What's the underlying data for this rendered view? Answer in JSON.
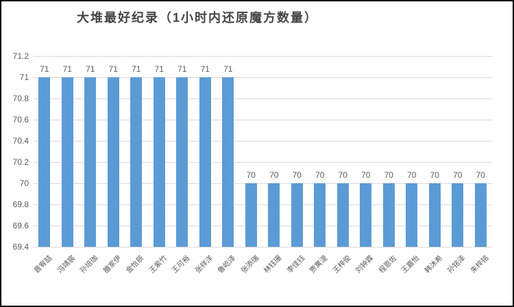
{
  "chart_data": {
    "type": "bar",
    "title": "大堆最好纪录（1小时内还原魔方数量）",
    "categories": [
      "晋宥喆",
      "冯靖宸",
      "孙培珈",
      "雒家伊",
      "金怡辰",
      "王紫竹",
      "王可裕",
      "张祥洋",
      "鲁屹泽",
      "张添瑞",
      "林钰珊",
      "李佳钰",
      "贾寓湜",
      "王梓俊",
      "刘钟霖",
      "程恩佐",
      "王嘉怡",
      "韩沐希",
      "孙铭泽",
      "朱梓铭"
    ],
    "values": [
      71,
      71,
      71,
      71,
      71,
      71,
      71,
      71,
      71,
      70,
      70,
      70,
      70,
      70,
      70,
      70,
      70,
      70,
      70,
      70
    ],
    "data_labels": [
      "71",
      "71",
      "71",
      "71",
      "71",
      "71",
      "71",
      "71",
      "71",
      "70",
      "70",
      "70",
      "70",
      "70",
      "70",
      "70",
      "70",
      "70",
      "70",
      "70"
    ],
    "xlabel": "",
    "ylabel": "",
    "ylim": [
      69.4,
      71.2
    ],
    "ytick_step": 0.2,
    "yticks": [
      "71.2",
      "71",
      "70.8",
      "70.6",
      "70.4",
      "70.2",
      "70",
      "69.8",
      "69.6",
      "69.4"
    ],
    "grid": true,
    "legend": false,
    "data_labels_shown": true,
    "bar_color": "#5b9bd5",
    "gridline_color": "#d9d9d9",
    "text_color": "#595959"
  }
}
